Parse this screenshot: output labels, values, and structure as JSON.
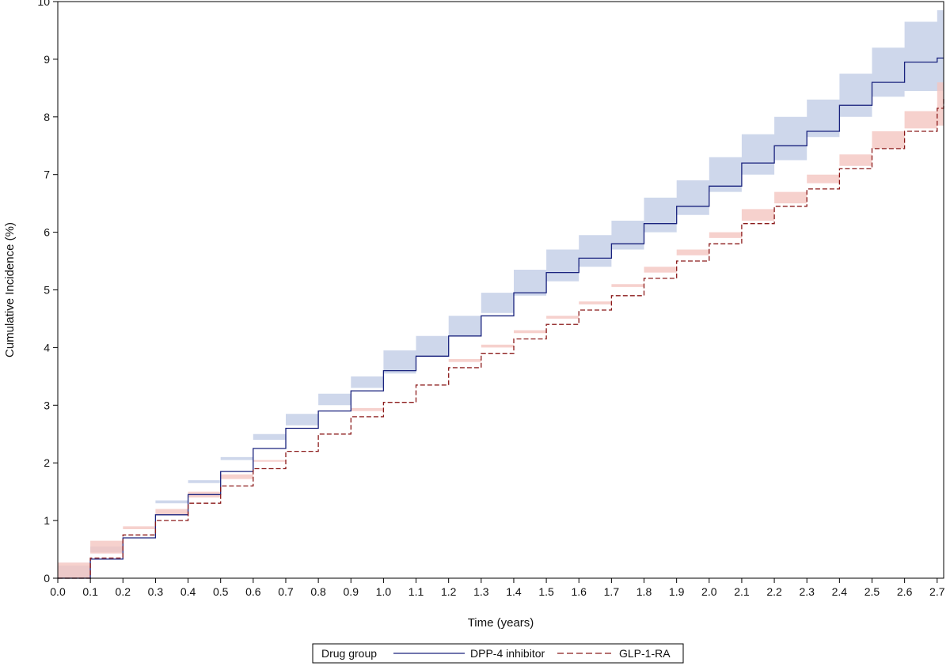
{
  "chart_data": {
    "type": "line",
    "title": "",
    "xlabel": "Time (years)",
    "ylabel": "Cumulative Incidence (%)",
    "xlim": [
      0,
      2.72
    ],
    "ylim": [
      0,
      10
    ],
    "x_ticks": [
      "0.0",
      "0.1",
      "0.2",
      "0.3",
      "0.4",
      "0.5",
      "0.6",
      "0.7",
      "0.8",
      "0.9",
      "1.0",
      "1.1",
      "1.2",
      "1.3",
      "1.4",
      "1.5",
      "1.6",
      "1.7",
      "1.8",
      "1.9",
      "2.0",
      "2.1",
      "2.2",
      "2.3",
      "2.4",
      "2.5",
      "2.6",
      "2.7"
    ],
    "y_ticks": [
      "0",
      "1",
      "2",
      "3",
      "4",
      "5",
      "6",
      "7",
      "8",
      "9",
      "10"
    ],
    "grid": false,
    "legend": {
      "title": "Drug group",
      "placement": "bottom",
      "entries": [
        "DPP-4 inhibitor",
        "GLP-1-RA"
      ]
    },
    "series": [
      {
        "name": "DPP-4 inhibitor",
        "color": "#1a237e",
        "band_color": "#c5d0e8",
        "line_style": "solid",
        "x": [
          0.0,
          0.1,
          0.2,
          0.3,
          0.4,
          0.5,
          0.6,
          0.7,
          0.8,
          0.9,
          1.0,
          1.1,
          1.2,
          1.3,
          1.4,
          1.5,
          1.6,
          1.7,
          1.8,
          1.9,
          2.0,
          2.1,
          2.2,
          2.3,
          2.4,
          2.5,
          2.6,
          2.7,
          2.72
        ],
        "y": [
          0.0,
          0.33,
          0.7,
          1.1,
          1.45,
          1.85,
          2.25,
          2.6,
          2.9,
          3.25,
          3.6,
          3.85,
          4.2,
          4.55,
          4.95,
          5.3,
          5.55,
          5.8,
          6.15,
          6.45,
          6.8,
          7.2,
          7.5,
          7.75,
          8.2,
          8.6,
          8.95,
          9.02,
          9.02
        ],
        "lower": [
          0.0,
          0.22,
          0.55,
          0.95,
          1.3,
          1.65,
          2.05,
          2.4,
          2.65,
          3.0,
          3.3,
          3.55,
          3.85,
          4.2,
          4.6,
          4.9,
          5.15,
          5.4,
          5.7,
          6.0,
          6.3,
          6.7,
          7.0,
          7.25,
          7.65,
          8.0,
          8.35,
          8.45,
          8.45
        ],
        "upper": [
          0.0,
          0.45,
          0.95,
          1.35,
          1.7,
          2.1,
          2.5,
          2.85,
          3.2,
          3.5,
          3.95,
          4.2,
          4.55,
          4.95,
          5.35,
          5.7,
          5.95,
          6.2,
          6.6,
          6.9,
          7.3,
          7.7,
          8.0,
          8.3,
          8.75,
          9.2,
          9.65,
          9.85,
          9.9
        ]
      },
      {
        "name": "GLP-1-RA",
        "color": "#8b1a1a",
        "band_color": "#f4c6c0",
        "line_style": "dashed",
        "x": [
          0.0,
          0.1,
          0.2,
          0.3,
          0.4,
          0.5,
          0.6,
          0.7,
          0.8,
          0.9,
          1.0,
          1.1,
          1.2,
          1.3,
          1.4,
          1.5,
          1.6,
          1.7,
          1.8,
          1.9,
          2.0,
          2.1,
          2.2,
          2.3,
          2.4,
          2.5,
          2.6,
          2.7,
          2.72
        ],
        "y": [
          0.0,
          0.35,
          0.75,
          1.0,
          1.3,
          1.6,
          1.9,
          2.2,
          2.5,
          2.8,
          3.05,
          3.35,
          3.65,
          3.9,
          4.15,
          4.4,
          4.65,
          4.9,
          5.2,
          5.5,
          5.8,
          6.15,
          6.45,
          6.75,
          7.1,
          7.45,
          7.75,
          8.15,
          8.35
        ],
        "lower": [
          0.0,
          0.27,
          0.65,
          0.9,
          1.2,
          1.5,
          1.8,
          2.05,
          2.35,
          2.65,
          2.9,
          3.2,
          3.5,
          3.75,
          4.0,
          4.25,
          4.5,
          4.75,
          5.05,
          5.3,
          5.6,
          5.9,
          6.2,
          6.5,
          6.85,
          7.15,
          7.45,
          7.8,
          7.85
        ],
        "upper": [
          0.0,
          0.43,
          0.85,
          1.1,
          1.4,
          1.72,
          2.02,
          2.35,
          2.65,
          2.95,
          3.2,
          3.5,
          3.8,
          4.05,
          4.3,
          4.55,
          4.8,
          5.1,
          5.4,
          5.7,
          6.0,
          6.4,
          6.7,
          7.0,
          7.35,
          7.75,
          8.1,
          8.6,
          8.85
        ]
      }
    ]
  }
}
